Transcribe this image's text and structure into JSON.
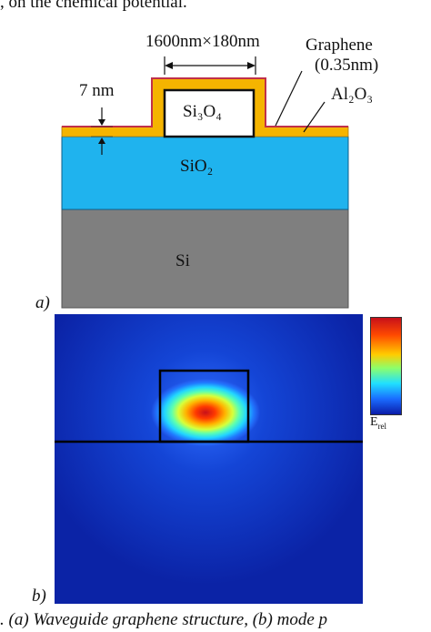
{
  "header_fragment": ", on the chemical potential.",
  "panel_a": {
    "tag": "a)",
    "dimension_label": "1600nm×180nm",
    "thickness_label": "7 nm",
    "graphene_label": "Graphene",
    "graphene_thickness": "(0.35nm)",
    "al2o3_label": "Al₂O₃",
    "si3o4_label": "Si₃O₄",
    "sio2_label": "SiO₂",
    "si_label": "Si"
  },
  "panel_b": {
    "tag": "b)",
    "colorbar_label_main": "E",
    "colorbar_label_sub": "rel"
  },
  "caption": {
    "text": ". (a) Waveguide graphene structure, (b) mode p"
  },
  "colors": {
    "al2o3": "#f5b400",
    "graphene": "#c0304a",
    "sio2": "#1fb3ee",
    "si": "#7f7f7f",
    "field_background": "#0c2fb8"
  }
}
